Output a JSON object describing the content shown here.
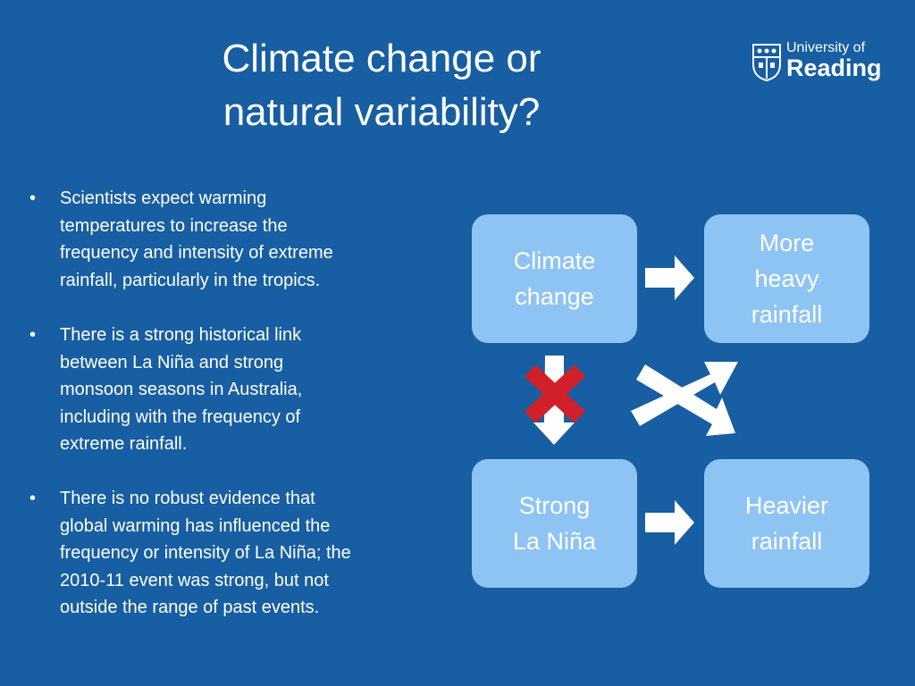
{
  "header": {
    "title": {
      "lines": [
        "Climate change or",
        "natural variability?"
      ]
    },
    "logo": {
      "lines": [
        "University of",
        "Reading"
      ]
    }
  },
  "bullets": [
    {
      "lines": [
        "Scientists expect warming",
        "temperatures to increase the",
        "frequency and intensity of extreme",
        "rainfall, particularly in the tropics."
      ]
    },
    {
      "lines": [
        "There is a strong historical link",
        "between La Niña and strong",
        "monsoon seasons in Australia,",
        "including with the frequency of",
        "extreme rainfall."
      ]
    },
    {
      "lines": [
        "There is no robust evidence that",
        "global warming has influenced the",
        "frequency or intensity of La Niña; the",
        "2010-11 event was strong, but not",
        "outside the range of past events."
      ]
    }
  ],
  "nodes": [
    {
      "lines": [
        "Climate",
        "change"
      ]
    },
    {
      "lines": [
        "More",
        "heavy",
        "rainfall"
      ]
    },
    {
      "lines": [
        "Strong",
        "La Niña"
      ]
    },
    {
      "lines": [
        "Heavier",
        "rainfall"
      ]
    }
  ]
}
